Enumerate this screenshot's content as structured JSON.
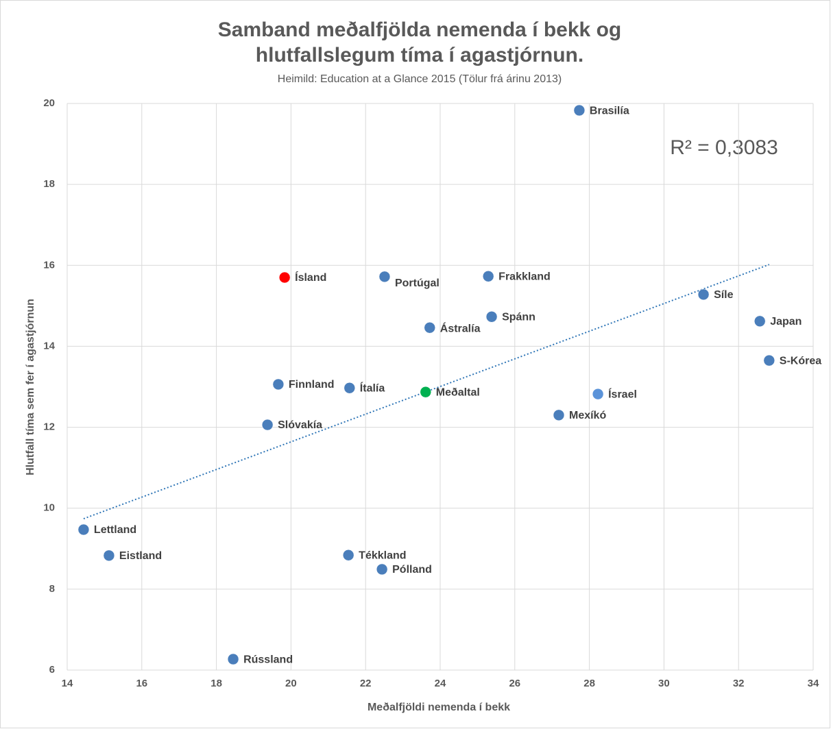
{
  "chart_data": {
    "type": "scatter",
    "title": [
      "Samband meðalfjölda nemenda í bekk og",
      "hlutfallslegum tíma í agastjórnun."
    ],
    "subtitle": "Heimild: Education at a Glance 2015 (Tölur frá árinu 2013)",
    "xlabel": "Meðalfjöldi nemenda í bekk",
    "ylabel": "Hlutfall tíma sem fer í agastjórnun",
    "xlim": [
      14,
      34
    ],
    "xticks": [
      14,
      16,
      18,
      20,
      22,
      24,
      26,
      28,
      30,
      32,
      34
    ],
    "ylim": [
      6,
      20
    ],
    "yticks": [
      6,
      8,
      10,
      12,
      14,
      16,
      18,
      20
    ],
    "grid": true,
    "labels": [
      "Brasilía",
      "Ísland",
      "Portúgal",
      "Frakkland",
      "Síle",
      "Spánn",
      "Japan",
      "Ástralía",
      "S-Kórea",
      "Finnland",
      "Ítalía",
      "Meðaltal",
      "Ísrael",
      "Mexíkó",
      "Slóvakía",
      "Lettland",
      "Eistland",
      "Tékkland",
      "Pólland",
      "Rússland"
    ],
    "x": [
      27.73,
      19.83,
      22.51,
      25.29,
      31.06,
      25.38,
      32.57,
      23.72,
      32.82,
      19.66,
      21.57,
      23.61,
      28.23,
      27.18,
      19.37,
      14.44,
      15.12,
      21.54,
      22.44,
      18.45
    ],
    "values": [
      19.83,
      15.7,
      15.72,
      15.73,
      15.28,
      14.73,
      14.62,
      14.46,
      13.65,
      13.06,
      12.97,
      12.87,
      12.82,
      12.3,
      12.06,
      9.47,
      8.83,
      8.84,
      8.49,
      6.27
    ],
    "colors": [
      "#4a7ebb",
      "#ff0000",
      "#4a7ebb",
      "#4a7ebb",
      "#4a7ebb",
      "#4a7ebb",
      "#4a7ebb",
      "#4a7ebb",
      "#4a7ebb",
      "#4a7ebb",
      "#4a7ebb",
      "#00b050",
      "#5b93d9",
      "#4a7ebb",
      "#4a7ebb",
      "#4a7ebb",
      "#4a7ebb",
      "#4a7ebb",
      "#4a7ebb",
      "#4a7ebb"
    ],
    "trendline": {
      "x": [
        14.44,
        32.82
      ],
      "y": [
        9.74,
        16.02
      ],
      "color": "#2e75b6"
    },
    "annotation": "R² = 0,3083"
  }
}
